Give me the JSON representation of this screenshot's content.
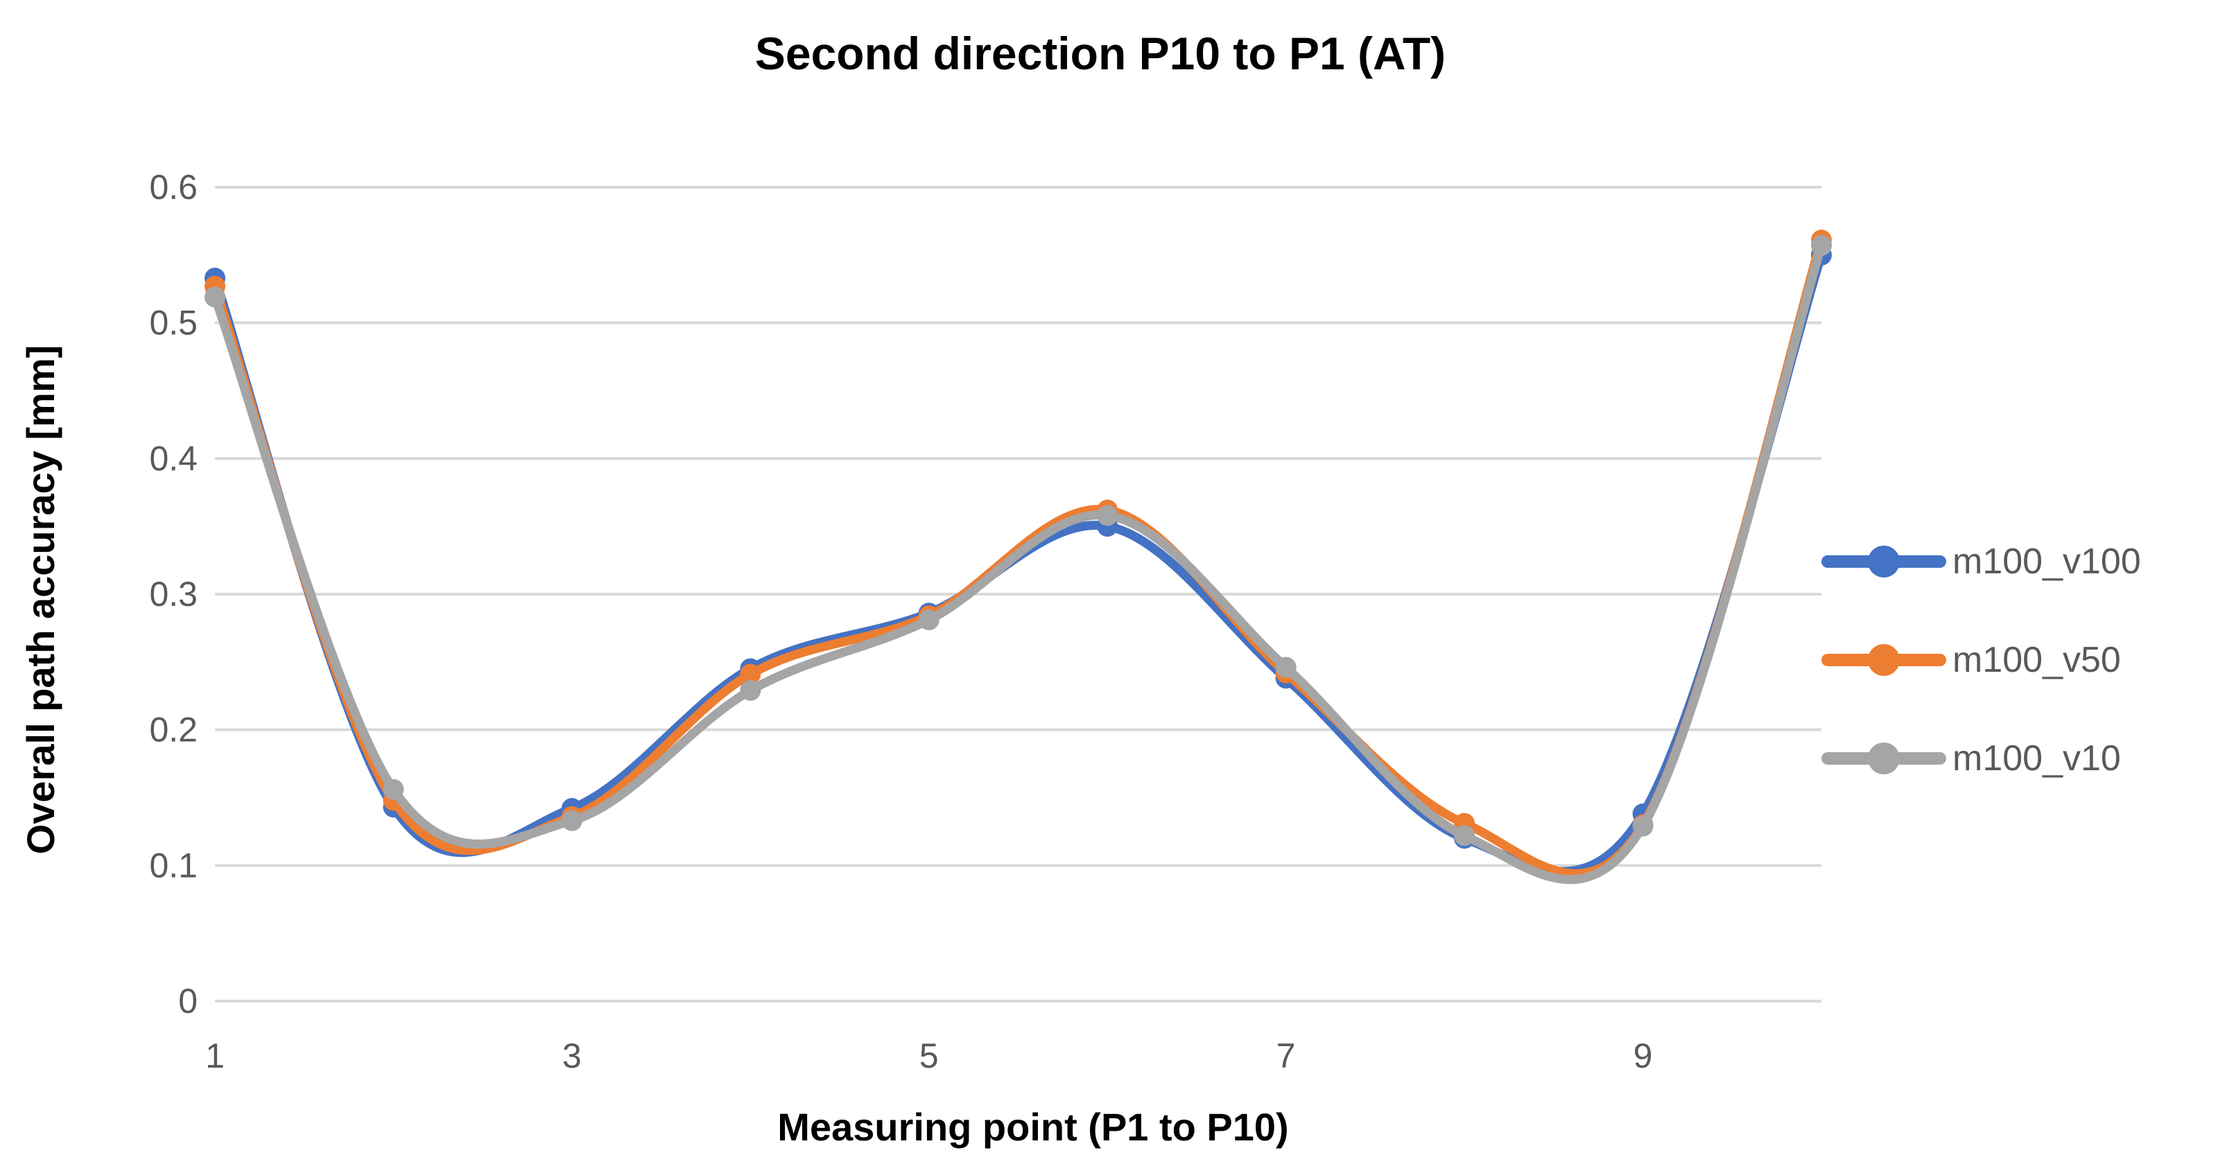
{
  "chart_data": {
    "type": "line",
    "title": "Second direction P10 to P1 (AT)",
    "xlabel": "Measuring point (P1 to P10)",
    "ylabel": "Overall path accuracy [mm]",
    "x": [
      1,
      2,
      3,
      4,
      5,
      6,
      7,
      8,
      9,
      10
    ],
    "xticks": [
      1,
      3,
      5,
      7,
      9
    ],
    "ylim": [
      0,
      0.6
    ],
    "ytick_step": 0.1,
    "grid": "horizontal",
    "smooth_lines": true,
    "legend_position": "right",
    "series": [
      {
        "name": "m100_v100",
        "color": "#4472C4",
        "values": [
          0.533,
          0.143,
          0.142,
          0.245,
          0.286,
          0.35,
          0.238,
          0.12,
          0.138,
          0.55
        ]
      },
      {
        "name": "m100_v50",
        "color": "#ED7D31",
        "values": [
          0.527,
          0.148,
          0.136,
          0.241,
          0.284,
          0.362,
          0.242,
          0.131,
          0.13,
          0.561
        ]
      },
      {
        "name": "m100_v10",
        "color": "#A5A5A5",
        "values": [
          0.519,
          0.156,
          0.133,
          0.229,
          0.281,
          0.358,
          0.246,
          0.122,
          0.129,
          0.557
        ]
      }
    ],
    "colors": {
      "gridline": "#D9D9D9",
      "tick_label": "#595959",
      "legend_text": "#595959",
      "title_text": "#000000",
      "background": "#FFFFFF"
    }
  }
}
